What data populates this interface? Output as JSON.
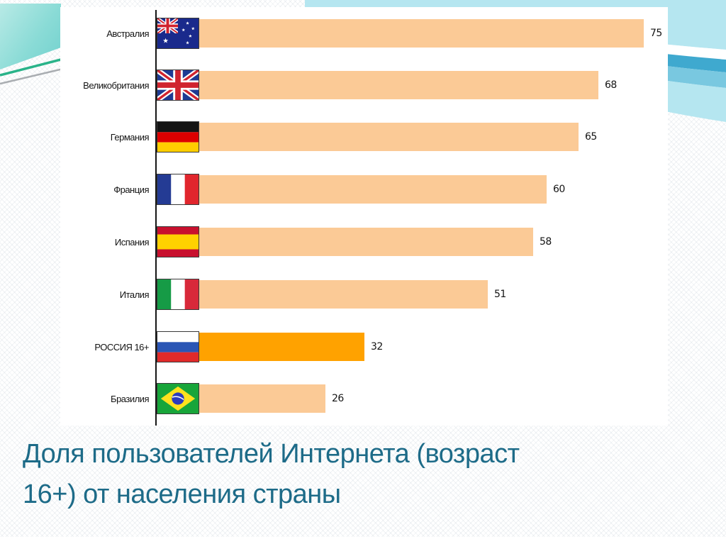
{
  "slide": {
    "title_lines": [
      "Доля пользователей Интернета (возраст",
      "16+) от населения страны"
    ],
    "title_color": "#1d6b88"
  },
  "chart_data": {
    "type": "bar",
    "orientation": "horizontal",
    "title": "Доля пользователей Интернета (возраст 16+) от населения страны",
    "value_unit": "percent of population",
    "xlim": [
      0,
      80
    ],
    "grid": false,
    "legend": false,
    "categories": [
      "Австралия",
      "Великобритания",
      "Германия",
      "Франция",
      "Испания",
      "Италия",
      "РОССИЯ 16+",
      "Бразилия"
    ],
    "values": [
      75,
      68,
      65,
      60,
      58,
      51,
      32,
      26
    ],
    "highlight_category": "РОССИЯ 16+",
    "bar_colors": {
      "default": "#fbca96",
      "highlight": "#ffa200"
    },
    "rows": [
      {
        "label": "Австралия",
        "value": 75,
        "flag_icon": "australia-flag-icon",
        "color": "#fbca96"
      },
      {
        "label": "Великобритания",
        "value": 68,
        "flag_icon": "uk-flag-icon",
        "color": "#fbca96"
      },
      {
        "label": "Германия",
        "value": 65,
        "flag_icon": "germany-flag-icon",
        "color": "#fbca96"
      },
      {
        "label": "Франция",
        "value": 60,
        "flag_icon": "france-flag-icon",
        "color": "#fbca96"
      },
      {
        "label": "Испания",
        "value": 58,
        "flag_icon": "spain-flag-icon",
        "color": "#fbca96"
      },
      {
        "label": "Италия",
        "value": 51,
        "flag_icon": "italy-flag-icon",
        "color": "#fbca96"
      },
      {
        "label": "РОССИЯ 16+",
        "value": 32,
        "flag_icon": "russia-flag-icon",
        "color": "#ffa200"
      },
      {
        "label": "Бразилия",
        "value": 26,
        "flag_icon": "brazil-flag-icon",
        "color": "#fbca96"
      }
    ]
  }
}
